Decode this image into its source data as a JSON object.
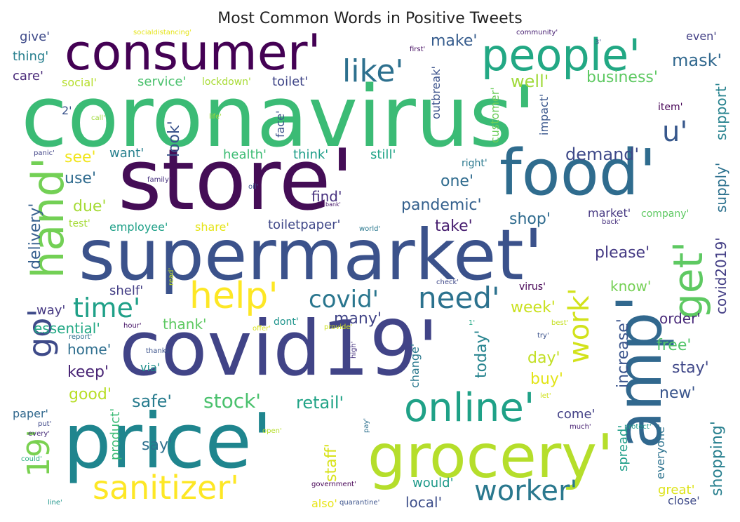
{
  "title": "Most Common Words in Positive Tweets",
  "colormap": "viridis",
  "words": [
    {
      "text": "coronavirus'",
      "color": "#3bbb75"
    },
    {
      "text": "store'",
      "color": "#440d56"
    },
    {
      "text": "supermarket'",
      "color": "#3b528b"
    },
    {
      "text": "covid19'",
      "color": "#414487"
    },
    {
      "text": "price'",
      "color": "#1f858e"
    },
    {
      "text": "consumer'",
      "color": "#440154"
    },
    {
      "text": "food'",
      "color": "#2f6c8e"
    },
    {
      "text": "amp'",
      "color": "#31688e"
    },
    {
      "text": "grocery'",
      "color": "#b5de2b"
    },
    {
      "text": "people'",
      "color": "#22a884"
    },
    {
      "text": "hand'",
      "color": "#73d055"
    },
    {
      "text": "get'",
      "color": "#5ec962"
    },
    {
      "text": "online'",
      "color": "#1fa187"
    },
    {
      "text": "sanitizer'",
      "color": "#fde725"
    },
    {
      "text": "worker'",
      "color": "#2a788e"
    },
    {
      "text": "help'",
      "color": "#fde725"
    },
    {
      "text": "like'",
      "color": "#2d708e"
    },
    {
      "text": "go'",
      "color": "#3e4a89"
    },
    {
      "text": "time'",
      "color": "#1fa088"
    },
    {
      "text": "need'",
      "color": "#2c728e"
    },
    {
      "text": "covid'",
      "color": "#2a768e"
    },
    {
      "text": "work'",
      "color": "#d2e21b"
    },
    {
      "text": "19'",
      "color": "#7ad151"
    },
    {
      "text": "u'",
      "color": "#38588c"
    },
    {
      "text": "covid2019'",
      "color": "#433e85"
    },
    {
      "text": "supply'",
      "color": "#2c718e"
    },
    {
      "text": "support'",
      "color": "#26828e"
    },
    {
      "text": "delivery'",
      "color": "#355f8d"
    },
    {
      "text": "increase'",
      "color": "#3a548c"
    },
    {
      "text": "shopping'",
      "color": "#277f8e"
    },
    {
      "text": "stock'",
      "color": "#4ac16d"
    },
    {
      "text": "retail'",
      "color": "#20a386"
    },
    {
      "text": "safe'",
      "color": "#287c8e"
    },
    {
      "text": "pandemic'",
      "color": "#34608d"
    },
    {
      "text": "demand'",
      "color": "#3e4989"
    },
    {
      "text": "mask'",
      "color": "#31688e"
    },
    {
      "text": "business'",
      "color": "#5ec962"
    },
    {
      "text": "well'",
      "color": "#a0da39"
    },
    {
      "text": "make'",
      "color": "#365c8d"
    },
    {
      "text": "please'",
      "color": "#443983"
    },
    {
      "text": "know'",
      "color": "#75d054"
    },
    {
      "text": "week'",
      "color": "#cae11f"
    },
    {
      "text": "order'",
      "color": "#482979"
    },
    {
      "text": "free'",
      "color": "#52c569"
    },
    {
      "text": "stay'",
      "color": "#3f4788"
    },
    {
      "text": "new'",
      "color": "#39558c"
    },
    {
      "text": "today'",
      "color": "#25838e"
    },
    {
      "text": "day'",
      "color": "#c2df23"
    },
    {
      "text": "buy'",
      "color": "#e2e418"
    },
    {
      "text": "look'",
      "color": "#3a538b"
    },
    {
      "text": "shop'",
      "color": "#2f6b8e"
    },
    {
      "text": "take'",
      "color": "#481f70"
    },
    {
      "text": "one'",
      "color": "#2f6b8e"
    },
    {
      "text": "find'",
      "color": "#46307e"
    },
    {
      "text": "many'",
      "color": "#414487"
    },
    {
      "text": "thank'",
      "color": "#5ec962"
    },
    {
      "text": "essential'",
      "color": "#22a884"
    },
    {
      "text": "keep'",
      "color": "#482475"
    },
    {
      "text": "home'",
      "color": "#2e6e8e"
    },
    {
      "text": "good'",
      "color": "#b8de29"
    },
    {
      "text": "due'",
      "color": "#a5db36"
    },
    {
      "text": "see'",
      "color": "#f1e51d"
    },
    {
      "text": "use'",
      "color": "#2f6b8e"
    },
    {
      "text": "want'",
      "color": "#27808e"
    },
    {
      "text": "health'",
      "color": "#3dbc74"
    },
    {
      "text": "think'",
      "color": "#1f9e89"
    },
    {
      "text": "still'",
      "color": "#20a486"
    },
    {
      "text": "shelf'",
      "color": "#433e85"
    },
    {
      "text": "way'",
      "color": "#453882"
    },
    {
      "text": "employee'",
      "color": "#1fa088"
    },
    {
      "text": "share'",
      "color": "#e5e419"
    },
    {
      "text": "toiletpaper'",
      "color": "#3f4788"
    },
    {
      "text": "say'",
      "color": "#2d708e"
    },
    {
      "text": "product'",
      "color": "#3bbb75"
    },
    {
      "text": "staff'",
      "color": "#d8e219"
    },
    {
      "text": "local'",
      "color": "#3d4e8a"
    },
    {
      "text": "would'",
      "color": "#1f9a8a"
    },
    {
      "text": "come'",
      "color": "#424086"
    },
    {
      "text": "spread'",
      "color": "#1f9e89"
    },
    {
      "text": "everyone'",
      "color": "#2c728e"
    },
    {
      "text": "great'",
      "color": "#dde318"
    },
    {
      "text": "close'",
      "color": "#3e4a89"
    },
    {
      "text": "also'",
      "color": "#e7e419"
    },
    {
      "text": "via'",
      "color": "#21918c"
    },
    {
      "text": "change'",
      "color": "#2a788e"
    },
    {
      "text": "customer'",
      "color": "#6ccd5a"
    },
    {
      "text": "impact'",
      "color": "#39568c"
    },
    {
      "text": "outbreak'",
      "color": "#3b528b"
    },
    {
      "text": "toilet'",
      "color": "#404688"
    },
    {
      "text": "service'",
      "color": "#4ac16d"
    },
    {
      "text": "social'",
      "color": "#b5de2b"
    },
    {
      "text": "lockdown'",
      "color": "#a8db34"
    },
    {
      "text": "give'",
      "color": "#3e4a89"
    },
    {
      "text": "thing'",
      "color": "#277f8e"
    },
    {
      "text": "care'",
      "color": "#482878"
    },
    {
      "text": "2'",
      "color": "#3a538b"
    },
    {
      "text": "face'",
      "color": "#3b528b"
    },
    {
      "text": "item'",
      "color": "#440154"
    },
    {
      "text": "market'",
      "color": "#453781"
    },
    {
      "text": "company'",
      "color": "#5ec962"
    },
    {
      "text": "dont'",
      "color": "#1f948c"
    },
    {
      "text": "virus'",
      "color": "#440154"
    },
    {
      "text": "right'",
      "color": "#2a788e"
    },
    {
      "text": "test'",
      "color": "#a5db36"
    },
    {
      "text": "paper'",
      "color": "#31688e"
    },
    {
      "text": "even'",
      "color": "#423f85"
    },
    {
      "text": "socialdistancing'",
      "color": "#e5e419"
    },
    {
      "text": "community'",
      "color": "#482173"
    },
    {
      "text": "first'",
      "color": "#471063"
    },
    {
      "text": "3'",
      "color": "#3d4d8a"
    },
    {
      "text": "call'",
      "color": "#9fda3a"
    },
    {
      "text": "life'",
      "color": "#a0da39"
    },
    {
      "text": "panic'",
      "color": "#414487"
    },
    {
      "text": "family'",
      "color": "#46327e"
    },
    {
      "text": "oil'",
      "color": "#3b528b"
    },
    {
      "text": "bank'",
      "color": "#481a6c"
    },
    {
      "text": "world'",
      "color": "#2a788e"
    },
    {
      "text": "back'",
      "color": "#46307e"
    },
    {
      "text": "read'",
      "color": "#c0df25"
    },
    {
      "text": "check'",
      "color": "#3f4889"
    },
    {
      "text": "best'",
      "color": "#c5e021"
    },
    {
      "text": "1'",
      "color": "#22a884"
    },
    {
      "text": "try'",
      "color": "#3b528b"
    },
    {
      "text": "hour'",
      "color": "#481769"
    },
    {
      "text": "offer'",
      "color": "#d8e219"
    },
    {
      "text": "provide'",
      "color": "#cde11d"
    },
    {
      "text": "report'",
      "color": "#2d708e"
    },
    {
      "text": "thanks'",
      "color": "#3b528b"
    },
    {
      "text": "high'",
      "color": "#46337f"
    },
    {
      "text": "let'",
      "color": "#d0e11c"
    },
    {
      "text": "put'",
      "color": "#3f4889"
    },
    {
      "text": "every'",
      "color": "#472d7b"
    },
    {
      "text": "could'",
      "color": "#29af7f"
    },
    {
      "text": "open'",
      "color": "#b5de2b"
    },
    {
      "text": "pay'",
      "color": "#2d708e"
    },
    {
      "text": "much'",
      "color": "#482173"
    },
    {
      "text": "protect'",
      "color": "#1f9a8a"
    },
    {
      "text": "government'",
      "color": "#440154"
    },
    {
      "text": "quarantine'",
      "color": "#3b528b"
    },
    {
      "text": "line'",
      "color": "#1f968b"
    }
  ]
}
